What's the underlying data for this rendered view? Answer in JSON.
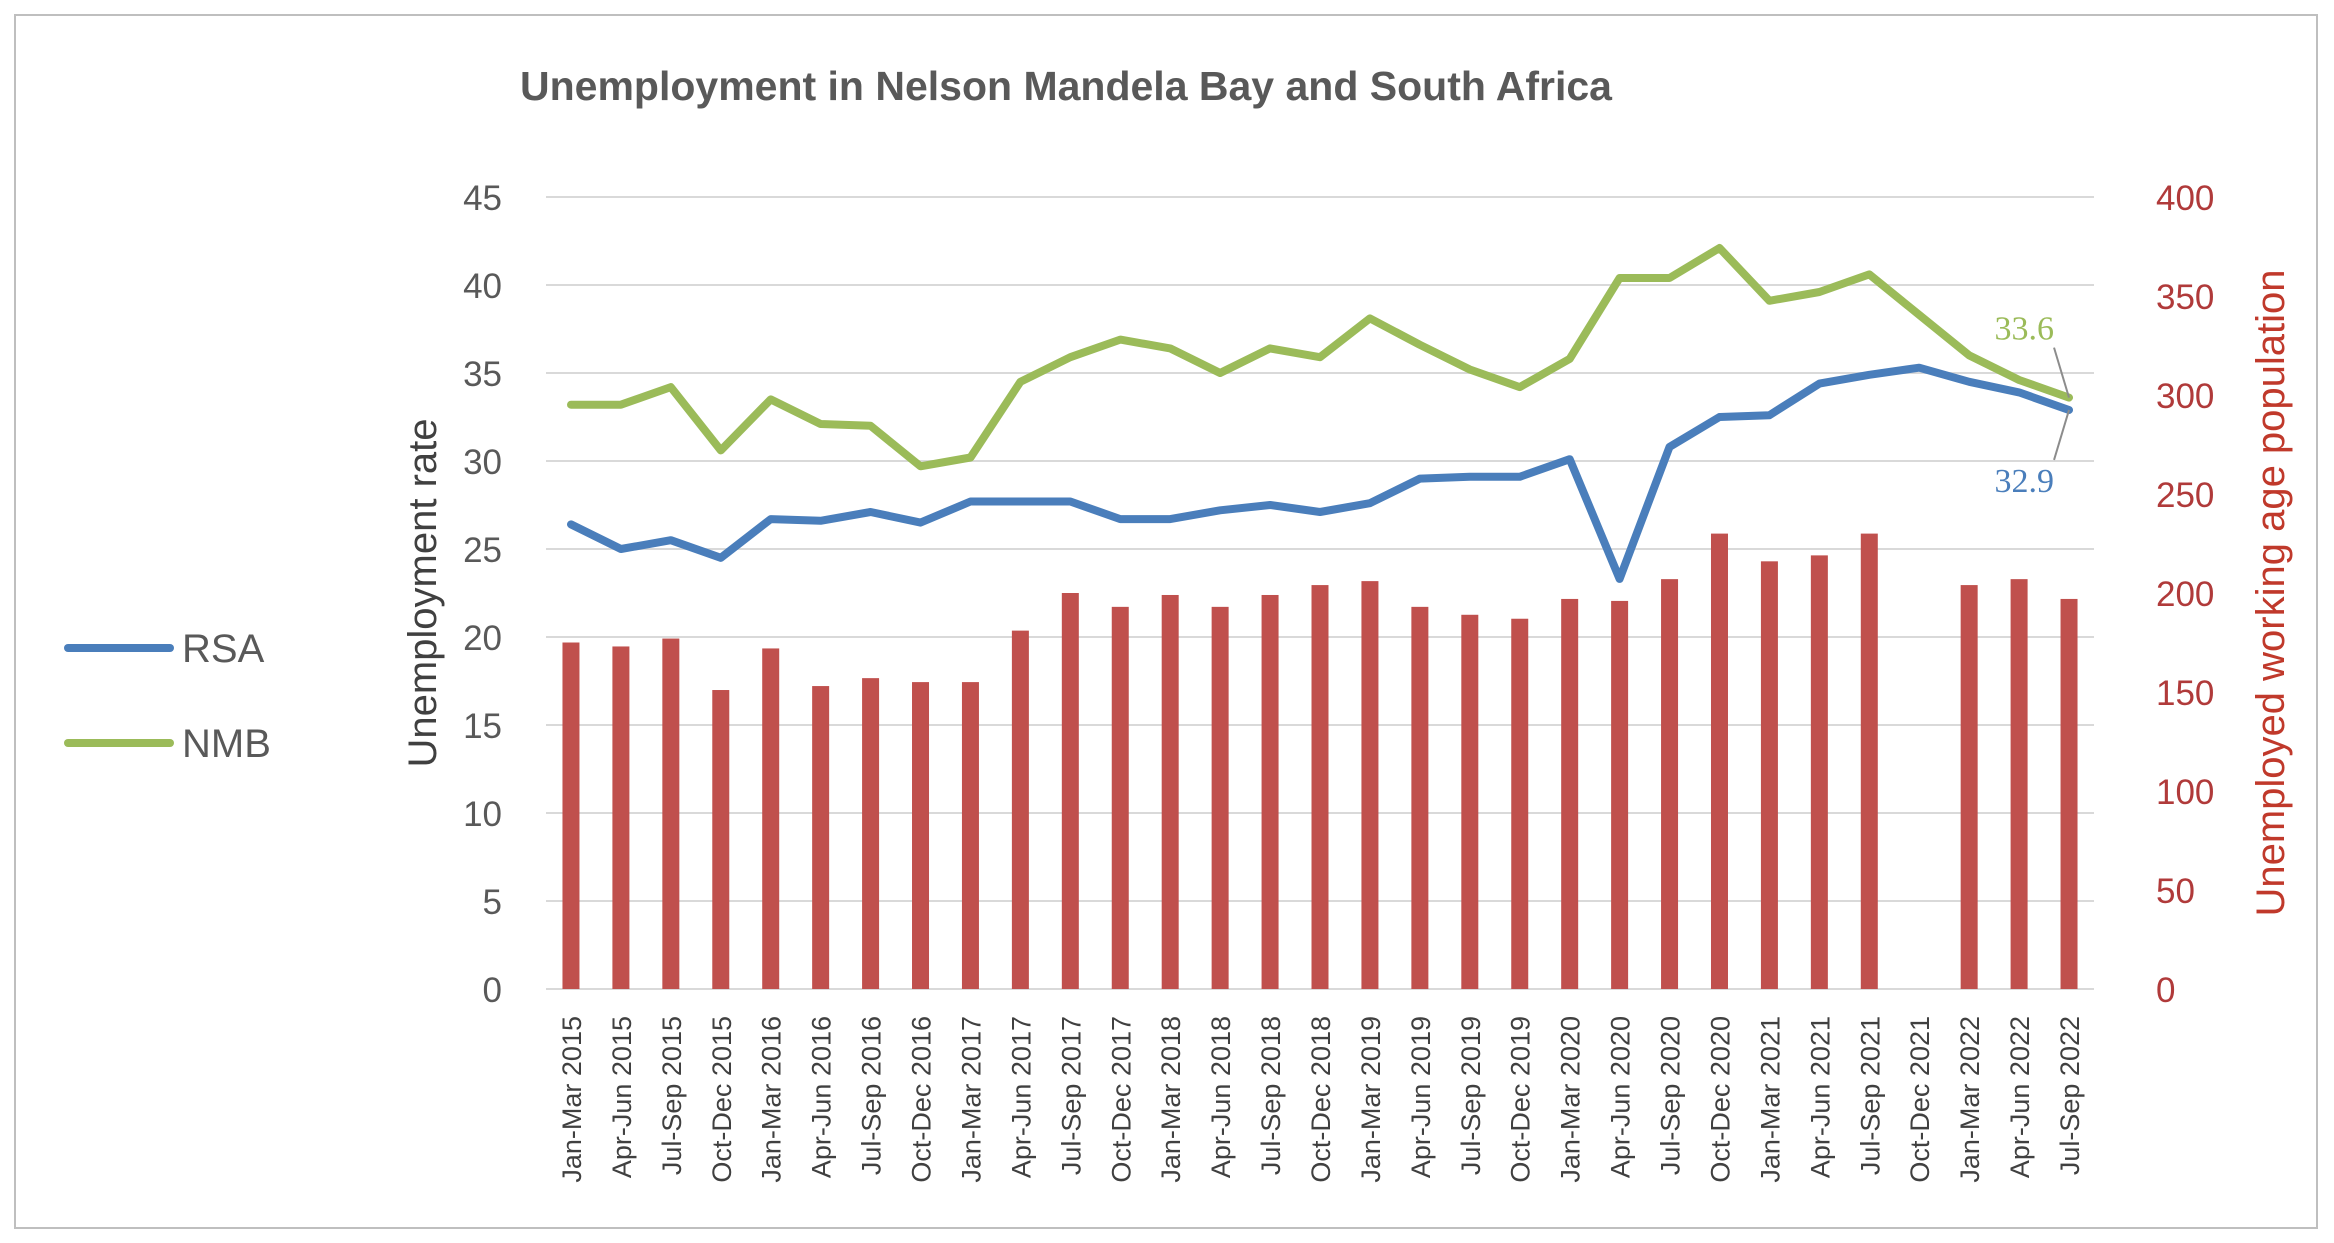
{
  "chart_data": {
    "type": "bar+line",
    "title": "Unemployment in Nelson Mandela Bay and South Africa",
    "categories": [
      "Jan-Mar 2015",
      "Apr-Jun 2015",
      "Jul-Sep 2015",
      "Oct-Dec 2015",
      "Jan-Mar 2016",
      "Apr-Jun 2016",
      "Jul-Sep 2016",
      "Oct-Dec 2016",
      "Jan-Mar 2017",
      "Apr-Jun 2017",
      "Jul-Sep 2017",
      "Oct-Dec 2017",
      "Jan-Mar 2018",
      "Apr-Jun 2018",
      "Jul-Sep 2018",
      "Oct-Dec 2018",
      "Jan-Mar 2019",
      "Apr-Jun 2019",
      "Jul-Sep 2019",
      "Oct-Dec 2019",
      "Jan-Mar 2020",
      "Apr-Jun 2020",
      "Jul-Sep 2020",
      "Oct-Dec 2020",
      "Jan-Mar 2021",
      "Apr-Jun 2021",
      "Jul-Sep 2021",
      "Oct-Dec 2021",
      "Jan-Mar 2022",
      "Apr-Jun 2022",
      "Jul-Sep 2022"
    ],
    "ylabel": "Unemployment rate",
    "ylabel_right": "Unemployed working age population",
    "ylim": [
      0,
      45
    ],
    "yticks": [
      0,
      5,
      10,
      15,
      20,
      25,
      30,
      35,
      40,
      45
    ],
    "ylim_right": [
      0,
      400
    ],
    "yticks_right": [
      0,
      50,
      100,
      150,
      200,
      250,
      300,
      350,
      400
    ],
    "grid": true,
    "legend_position": "left",
    "bars": {
      "axis": "right",
      "color": "#c0504d",
      "values": [
        175,
        173,
        177,
        151,
        172,
        153,
        157,
        155,
        155,
        181,
        200,
        193,
        199,
        193,
        199,
        204,
        206,
        193,
        189,
        187,
        197,
        196,
        207,
        230,
        216,
        219,
        230,
        null,
        204,
        207,
        197
      ]
    },
    "series": [
      {
        "name": "RSA",
        "color": "#4a7ebb",
        "axis": "left",
        "values": [
          26.4,
          25.0,
          25.5,
          24.5,
          26.7,
          26.6,
          27.1,
          26.5,
          27.7,
          27.7,
          27.7,
          26.7,
          26.7,
          27.2,
          27.5,
          27.1,
          27.6,
          29.0,
          29.1,
          29.1,
          30.1,
          23.3,
          30.8,
          32.5,
          32.6,
          34.4,
          34.9,
          35.3,
          34.5,
          33.9,
          32.9
        ],
        "end_label": "32.9"
      },
      {
        "name": "NMB",
        "color": "#9bbb59",
        "axis": "left",
        "values": [
          33.2,
          33.2,
          34.2,
          30.6,
          33.5,
          32.1,
          32.0,
          29.7,
          30.2,
          34.5,
          35.9,
          36.9,
          36.4,
          35.0,
          36.4,
          35.9,
          38.1,
          36.6,
          35.2,
          34.2,
          35.8,
          40.4,
          40.4,
          42.1,
          39.1,
          39.6,
          40.6,
          38.3,
          36.0,
          34.6,
          33.6
        ],
        "end_label": "33.6"
      }
    ]
  }
}
